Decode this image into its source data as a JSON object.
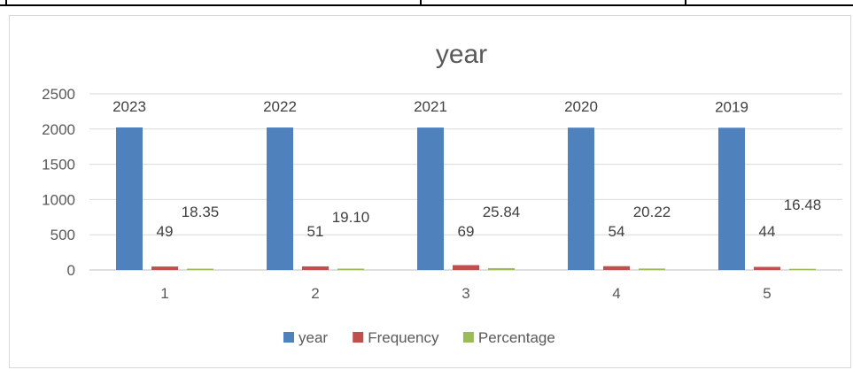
{
  "chart_data": {
    "type": "bar",
    "title": "year",
    "categories": [
      "1",
      "2",
      "3",
      "4",
      "5"
    ],
    "series": [
      {
        "name": "year",
        "color": "#4F81BD",
        "values": [
          2023,
          2022,
          2021,
          2020,
          2019
        ],
        "labels": [
          "2023",
          "2022",
          "2021",
          "2020",
          "2019"
        ]
      },
      {
        "name": "Frequency",
        "color": "#C0504D",
        "values": [
          49,
          51,
          69,
          54,
          44
        ],
        "labels": [
          "49",
          "51",
          "69",
          "54",
          "44"
        ]
      },
      {
        "name": "Percentage",
        "color": "#9BBB59",
        "values": [
          18.35,
          19.1,
          25.84,
          20.22,
          16.48
        ],
        "labels": [
          "18.35",
          "19.10",
          "25.84",
          "20.22",
          "16.48"
        ]
      }
    ],
    "yaxis": {
      "min": 0,
      "max": 2500,
      "ticks": [
        0,
        500,
        1000,
        1500,
        2000,
        2500
      ]
    },
    "xlabel": "",
    "ylabel": "",
    "grid": true,
    "legend_position": "bottom"
  }
}
